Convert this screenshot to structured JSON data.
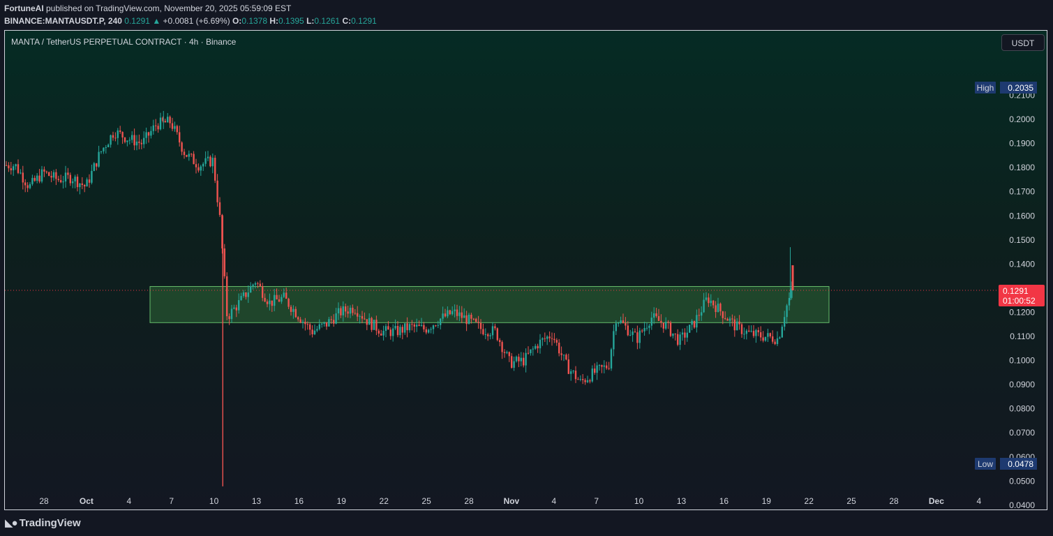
{
  "header": {
    "line1_author": "FortuneAI",
    "line1_rest": " published on TradingView.com, November 20, 2025 05:59:09 EST",
    "symbol": "BINANCE:MANTAUSDT.P, 240",
    "price": "0.1291",
    "change_arrow": "▲",
    "change": "+0.0081 (+6.69%)",
    "o_label": "O:",
    "o_value": "0.1378",
    "h_label": "H:",
    "h_value": "0.1395",
    "l_label": "L:",
    "l_value": "0.1261",
    "c_label": "C:",
    "c_value": "0.1291"
  },
  "chart_title": "MANTA / TetherUS PERPETUAL CONTRACT · 4h · Binance",
  "currency_button": "USDT",
  "footer": {
    "brand": "TradingView"
  },
  "colors": {
    "up": "#26a69a",
    "down": "#ef5350",
    "zone_fill": "#4caf50",
    "zone_border": "#66bb6a",
    "price_label": "#f23645",
    "marker_label": "#1e3a70"
  },
  "chart_data": {
    "type": "candlestick",
    "title": "MANTA / TetherUS PERPETUAL CONTRACT · 4h · Binance",
    "y_axis": {
      "ticks": [
        "0.2100",
        "0.2000",
        "0.1900",
        "0.1800",
        "0.1700",
        "0.1600",
        "0.1500",
        "0.1400",
        "0.1300",
        "0.1200",
        "0.1100",
        "0.1000",
        "0.0900",
        "0.0800",
        "0.0700",
        "0.0600",
        "0.0500",
        "0.0400"
      ],
      "range": [
        0.037,
        0.219
      ]
    },
    "x_axis": {
      "labels": [
        "28",
        "Oct",
        "4",
        "7",
        "10",
        "13",
        "16",
        "19",
        "22",
        "25",
        "28",
        "Nov",
        "4",
        "7",
        "10",
        "13",
        "16",
        "19",
        "22",
        "25",
        "28",
        "Dec",
        "4"
      ],
      "bold_labels": [
        "Oct",
        "Nov",
        "Dec"
      ],
      "period_start": "2025-09-26",
      "period_end": "2025-12-05"
    },
    "high_marker": {
      "label": "High",
      "value": "0.2035"
    },
    "low_marker": {
      "label": "Low",
      "value": "0.0478"
    },
    "last_price": {
      "value": "0.1291",
      "countdown": "01:00:52"
    },
    "zone": {
      "top": 0.1307,
      "bottom": 0.1157,
      "from": "2025-10-05",
      "to": "2025-11-22"
    },
    "close_path": [
      [
        "2025-09-26",
        0.181
      ],
      [
        "2025-09-27",
        0.172
      ],
      [
        "2025-09-28",
        0.178
      ],
      [
        "2025-09-29",
        0.175
      ],
      [
        "2025-09-30",
        0.176
      ],
      [
        "2025-10-01",
        0.172
      ],
      [
        "2025-10-02",
        0.186
      ],
      [
        "2025-10-03",
        0.195
      ],
      [
        "2025-10-04",
        0.192
      ],
      [
        "2025-10-05",
        0.19
      ],
      [
        "2025-10-06",
        0.198
      ],
      [
        "2025-10-07",
        0.199
      ],
      [
        "2025-10-08",
        0.186
      ],
      [
        "2025-10-09",
        0.181
      ],
      [
        "2025-10-10",
        0.183
      ],
      [
        "2025-10-10.5",
        0.158
      ],
      [
        "2025-10-11",
        0.118
      ],
      [
        "2025-10-12",
        0.125
      ],
      [
        "2025-10-13",
        0.133
      ],
      [
        "2025-10-14",
        0.124
      ],
      [
        "2025-10-15",
        0.126
      ],
      [
        "2025-10-16",
        0.119
      ],
      [
        "2025-10-17",
        0.112
      ],
      [
        "2025-10-18",
        0.115
      ],
      [
        "2025-10-19",
        0.12
      ],
      [
        "2025-10-20",
        0.122
      ],
      [
        "2025-10-21",
        0.116
      ],
      [
        "2025-10-22",
        0.112
      ],
      [
        "2025-10-23",
        0.112
      ],
      [
        "2025-10-24",
        0.114
      ],
      [
        "2025-10-25",
        0.113
      ],
      [
        "2025-10-26",
        0.117
      ],
      [
        "2025-10-27",
        0.12
      ],
      [
        "2025-10-28",
        0.117
      ],
      [
        "2025-10-29",
        0.113
      ],
      [
        "2025-10-30",
        0.112
      ],
      [
        "2025-10-31",
        0.099
      ],
      [
        "2025-11-01",
        0.1
      ],
      [
        "2025-11-02",
        0.107
      ],
      [
        "2025-11-03",
        0.111
      ],
      [
        "2025-11-04",
        0.098
      ],
      [
        "2025-11-05",
        0.091
      ],
      [
        "2025-11-06",
        0.095
      ],
      [
        "2025-11-07",
        0.098
      ],
      [
        "2025-11-07.5",
        0.118
      ],
      [
        "2025-11-08",
        0.115
      ],
      [
        "2025-11-09",
        0.109
      ],
      [
        "2025-11-10",
        0.118
      ],
      [
        "2025-11-11",
        0.115
      ],
      [
        "2025-11-12",
        0.108
      ],
      [
        "2025-11-13",
        0.115
      ],
      [
        "2025-11-14",
        0.126
      ],
      [
        "2025-11-15",
        0.12
      ],
      [
        "2025-11-16",
        0.114
      ],
      [
        "2025-11-17",
        0.111
      ],
      [
        "2025-11-18",
        0.11
      ],
      [
        "2025-11-19",
        0.109
      ],
      [
        "2025-11-19.5",
        0.121
      ],
      [
        "2025-11-20",
        0.1291
      ]
    ]
  }
}
